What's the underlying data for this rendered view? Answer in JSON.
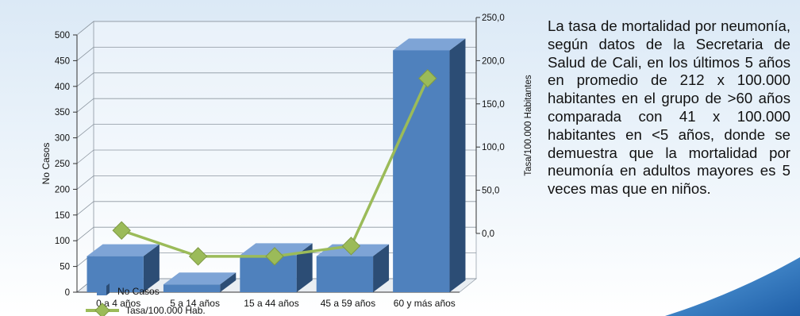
{
  "chart_data": {
    "type": "bar",
    "categories": [
      "0 a 4 años",
      "5 a 14  años",
      "15 a 44  años",
      "45 a 59  años",
      "60 y más años"
    ],
    "series": [
      {
        "name": "No Casos",
        "type": "bar",
        "axis": "left",
        "values": [
          70,
          15,
          72,
          70,
          470
        ]
      },
      {
        "name": "Tasa/100.000 Hab.",
        "type": "line",
        "axis": "right",
        "values": [
          20,
          -10,
          -10,
          2,
          196
        ]
      }
    ],
    "ylabel": "No Casos",
    "ylabel_right": "Tasa/100.000 Habitantes",
    "ylim": [
      0,
      500
    ],
    "ylim_right": [
      0,
      250
    ],
    "yticks": [
      "0",
      "50",
      "100",
      "150",
      "200",
      "250",
      "300",
      "350",
      "400",
      "450",
      "500"
    ],
    "yticks_right": [
      "0,0",
      "50,0",
      "100,0",
      "150,0",
      "200,0",
      "250,0"
    ],
    "grid": true,
    "legend_position": "bottom-left",
    "colors": {
      "bar": "#4f81bd",
      "line": "#9bbb59"
    }
  },
  "description": "La tasa de mortalidad por neumonía, según datos de la Secretaria de Salud de Cali, en los últimos 5 años en promedio de 212 x 100.000 habitantes en el grupo de >60 años comparada con 41 x 100.000 habitantes en <5 años, donde se demuestra que la mortalidad por neumonía en adultos mayores es 5 veces mas que en niños."
}
